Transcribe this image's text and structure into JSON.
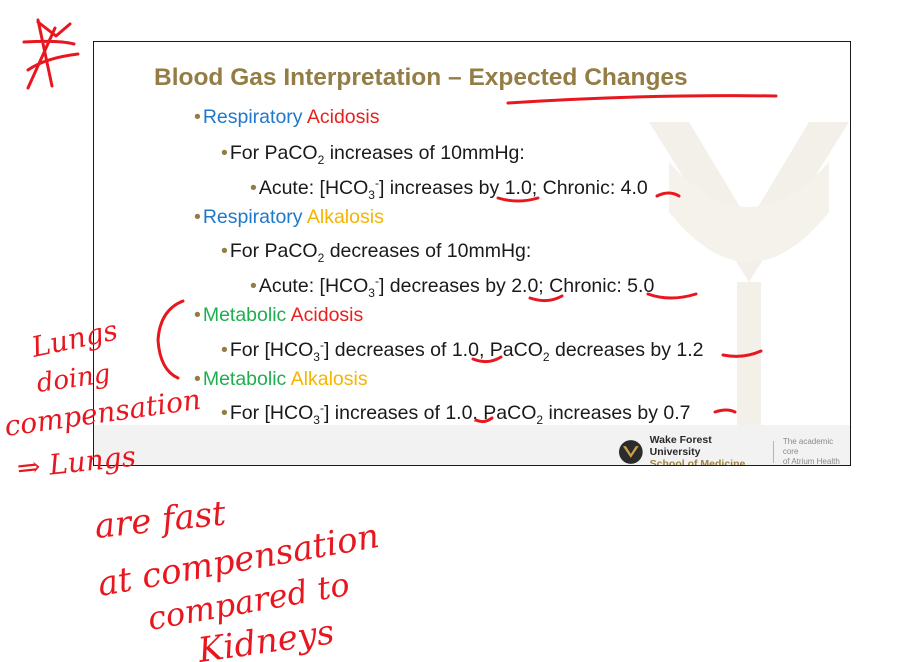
{
  "slide": {
    "title": "Blood Gas Interpretation – Expected Changes",
    "resp_acidosis": {
      "a": "Respiratory",
      "b": "Acidosis",
      "rule": "For PaCO",
      "rule2": " increases of 10mmHg:",
      "detail_1": "Acute: [HCO",
      "detail_2": "] increases by 1.0; Chronic: 4.0"
    },
    "resp_alkalosis": {
      "a": "Respiratory",
      "b": "Alkalosis",
      "rule": "For PaCO",
      "rule2": " decreases of 10mmHg:",
      "detail_1": "Acute: [HCO",
      "detail_2": "] decreases by 2.0; Chronic: 5.0"
    },
    "met_acidosis": {
      "a": "Metabolic",
      "b": "Acidosis",
      "rule_1": "For [HCO",
      "rule_2": "] decreases of 1.0, PaCO",
      "rule_3": " decreases by 1.2"
    },
    "met_alkalosis": {
      "a": "Metabolic",
      "b": "Alkalosis",
      "rule_1": "For [HCO",
      "rule_2": "] increases of 1.0, PaCO",
      "rule_3": " increases by 0.7"
    },
    "sub_2": "2",
    "sub_3": "3",
    "sup_minus": "-",
    "logo": {
      "name": "Wake Forest University",
      "school": "School of Medicine",
      "tagline_1": "The academic core",
      "tagline_2": "of Atrium Health"
    }
  },
  "handwriting": [
    "Lungs",
    "doing",
    "compensation",
    "⇒ Lungs",
    "are fast",
    "at compensation",
    "compared to",
    "Kidneys"
  ],
  "colors": {
    "title": "#947d45",
    "blue": "#1f78c8",
    "red": "#e8211c",
    "gold": "#f5b400",
    "green": "#1fae4f",
    "ink": "#e8171f"
  }
}
